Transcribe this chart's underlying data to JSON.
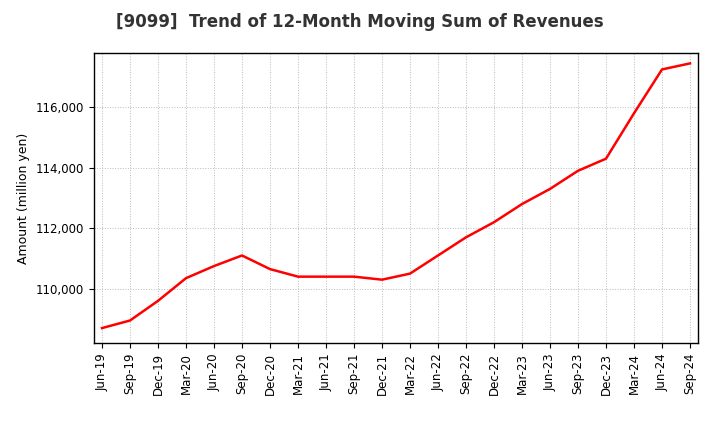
{
  "title": "[9099]  Trend of 12-Month Moving Sum of Revenues",
  "ylabel": "Amount (million yen)",
  "background_color": "#ffffff",
  "plot_bg_color": "#ffffff",
  "line_color": "#ff0000",
  "line_width": 1.8,
  "grid_color": "#bbbbbb",
  "x_labels": [
    "Jun-19",
    "Sep-19",
    "Dec-19",
    "Mar-20",
    "Jun-20",
    "Sep-20",
    "Dec-20",
    "Mar-21",
    "Jun-21",
    "Sep-21",
    "Dec-21",
    "Mar-22",
    "Jun-22",
    "Sep-22",
    "Dec-22",
    "Mar-23",
    "Jun-23",
    "Sep-23",
    "Dec-23",
    "Mar-24",
    "Jun-24",
    "Sep-24"
  ],
  "y_values": [
    108700,
    108950,
    109600,
    110350,
    110750,
    111100,
    110650,
    110400,
    110400,
    110400,
    110300,
    110500,
    111100,
    111700,
    112200,
    112800,
    113300,
    113900,
    114300,
    115800,
    117250,
    117450
  ],
  "ylim_min": 108200,
  "ylim_max": 117800,
  "yticks": [
    110000,
    112000,
    114000,
    116000
  ],
  "title_fontsize": 12,
  "axis_label_fontsize": 9,
  "tick_fontsize": 8.5
}
